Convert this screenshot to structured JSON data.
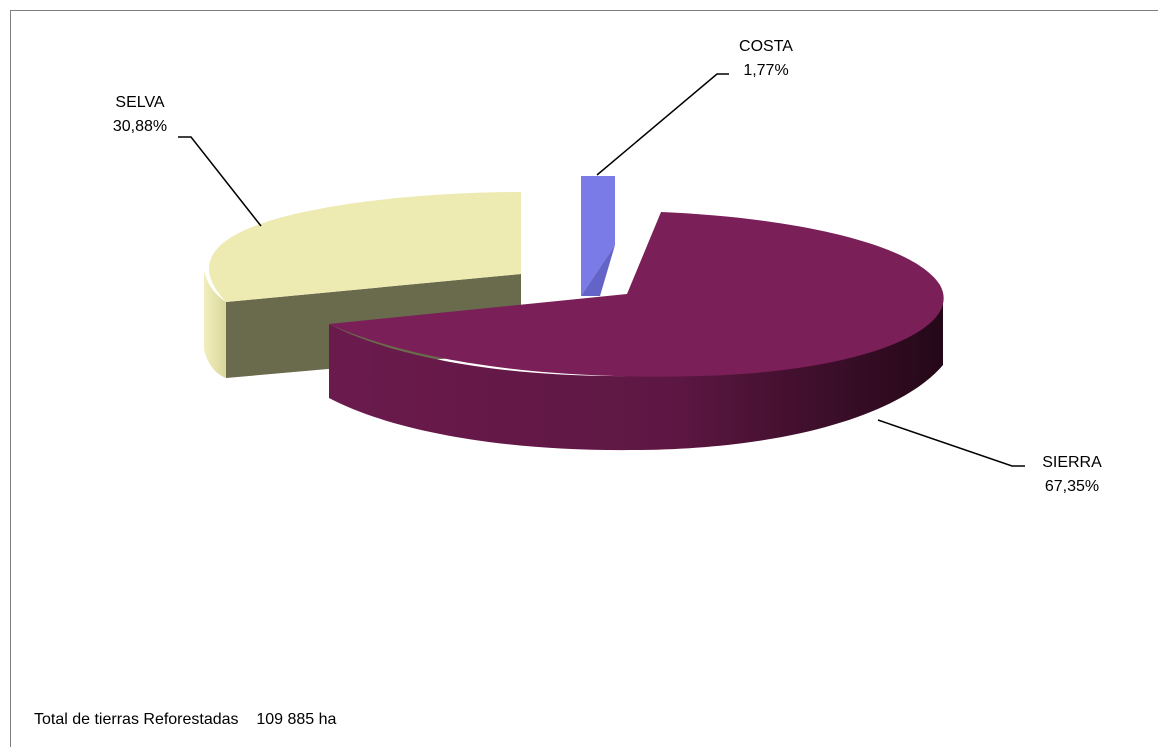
{
  "chart_data": {
    "type": "pie",
    "style": "3d-exploded",
    "categories": [
      "COSTA",
      "SIERRA",
      "SELVA"
    ],
    "values": [
      1.77,
      67.35,
      30.88
    ],
    "value_labels": [
      "1,77%",
      "67,35%",
      "30,88%"
    ],
    "colors": {
      "COSTA": "#7b7be8",
      "SIERRA": "#7a1f58",
      "SELVA": "#eeebb2"
    },
    "title": "",
    "legend": "none",
    "labels": "outside-with-leader-lines"
  },
  "footnote": {
    "label": "Total de tierras Reforestadas",
    "value": "109 885 ha"
  }
}
